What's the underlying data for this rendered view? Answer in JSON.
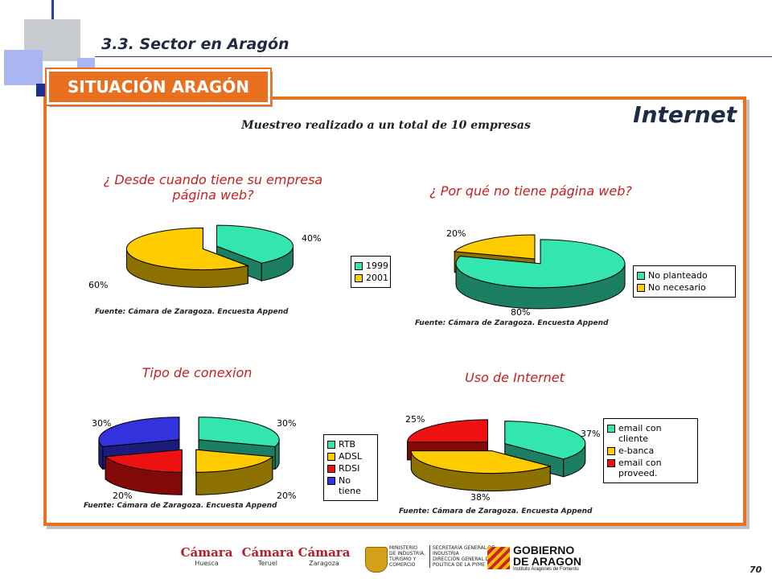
{
  "header": {
    "section_title": "3.3. Sector en Aragón",
    "tab_label": "SITUACIÓN ARAGÓN"
  },
  "panel": {
    "title": "Internet",
    "sample_note": "Muestreo realizado a un total de 10 empresas"
  },
  "colors": {
    "accent": "#e8701f",
    "teal": "#33e6b0",
    "yellow": "#ffcc00",
    "red": "#ee1111",
    "blue": "#3333dd"
  },
  "chart_data": [
    {
      "type": "pie",
      "title": "¿ Desde cuando tiene su empresa página web?",
      "categories": [
        "1999",
        "2001"
      ],
      "values": [
        40,
        60
      ],
      "labels": [
        "40%",
        "60%"
      ],
      "legend_position": "right",
      "source": "Fuente: Cámara de Zaragoza. Encuesta Append"
    },
    {
      "type": "pie",
      "title": "¿ Por qué no tiene página web?",
      "categories": [
        "No planteado",
        "No necesario"
      ],
      "values": [
        80,
        20
      ],
      "labels": [
        "80%",
        "20%"
      ],
      "legend_position": "right",
      "source": "Fuente: Cámara de Zaragoza. Encuesta Append"
    },
    {
      "type": "pie",
      "title": "Tipo de conexion",
      "categories": [
        "RTB",
        "ADSL",
        "RDSI",
        "No tiene"
      ],
      "values": [
        30,
        20,
        20,
        30
      ],
      "labels": [
        "30%",
        "20%",
        "20%",
        "30%"
      ],
      "legend_position": "right",
      "source": "Fuente: Cámara de Zaragoza. Encuesta Append"
    },
    {
      "type": "pie",
      "title": "Uso de Internet",
      "categories": [
        "email con cliente",
        "e-banca",
        "email con proveed."
      ],
      "values": [
        37,
        38,
        25
      ],
      "labels": [
        "37%",
        "38%",
        "25%"
      ],
      "legend_position": "right",
      "source": "Fuente: Cámara de Zaragoza. Encuesta Append"
    }
  ],
  "footer": {
    "page_number": "70",
    "logos": [
      {
        "name": "Cámara",
        "sub": "Huesca"
      },
      {
        "name": "Cámara",
        "sub": "Teruel"
      },
      {
        "name": "Cámara",
        "sub": "Zaragoza"
      }
    ],
    "ministry_text": [
      "MINISTERIO",
      "DE INDUSTRIA,",
      "TURISMO Y",
      "COMERCIO"
    ],
    "secretaria_text": [
      "SECRETARÍA GENERAL DE",
      "INDUSTRIA",
      "DIRECCIÓN GENERAL DE",
      "POLÍTICA DE LA PYME"
    ],
    "gobierno_line1": "GOBIERNO",
    "gobierno_line2": "DE ARAGON",
    "gobierno_sub": "Instituto Aragonés de Fomento"
  }
}
